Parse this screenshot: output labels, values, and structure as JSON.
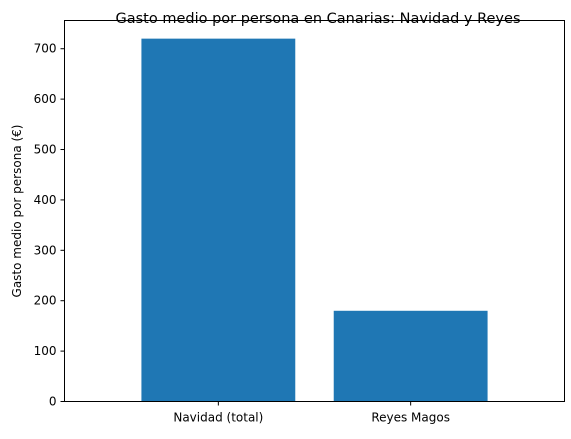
{
  "chart_data": {
    "type": "bar",
    "title": "Gasto medio por persona en Canarias: Navidad y Reyes",
    "xlabel": "",
    "ylabel": "Gasto medio por persona (€)",
    "categories": [
      "Navidad (total)",
      "Reyes Magos"
    ],
    "values": [
      720,
      180
    ],
    "ylim": [
      0,
      756
    ],
    "yticks": [
      0,
      100,
      200,
      300,
      400,
      500,
      600,
      700
    ],
    "grid": false,
    "legend": "none",
    "bar_color": "#1f77b4"
  }
}
